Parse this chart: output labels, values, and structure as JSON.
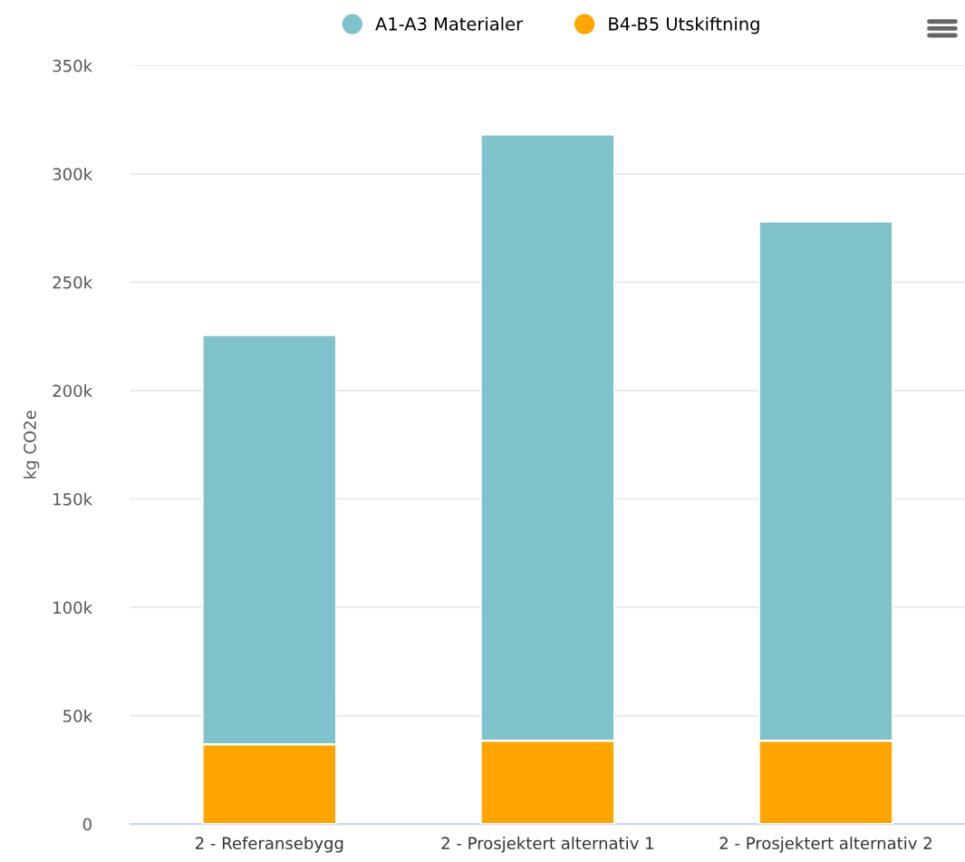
{
  "chart_data": {
    "type": "bar",
    "stacked": true,
    "ylabel": "kg CO2e",
    "categories": [
      "2 - Referansebygg",
      "2 - Prosjektert alternativ 1",
      "2 - Prosjektert alternativ 2"
    ],
    "series": [
      {
        "name": "B4-B5 Utskiftning",
        "color": "#ffa500",
        "values": [
          36800,
          38500,
          38500
        ]
      },
      {
        "name": "A1-A3 Materialer",
        "color": "#80c2cb",
        "values": [
          188800,
          279600,
          239500
        ]
      }
    ],
    "ylim": [
      0,
      350000
    ],
    "yticks": [
      0,
      {
        "value": 50000,
        "label": "50k"
      },
      {
        "value": 100000,
        "label": "100k"
      },
      {
        "value": 150000,
        "label": "150k"
      },
      {
        "value": 200000,
        "label": "200k"
      },
      {
        "value": 250000,
        "label": "250k"
      },
      {
        "value": 300000,
        "label": "300k"
      },
      {
        "value": 350000,
        "label": "350k"
      }
    ],
    "grid": "y",
    "legend": "top"
  }
}
